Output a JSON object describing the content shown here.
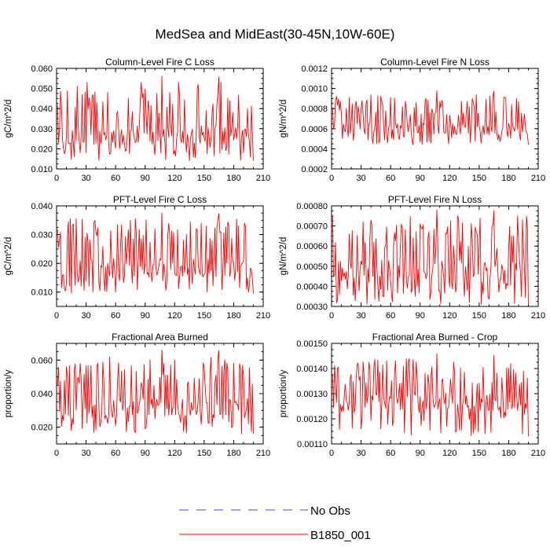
{
  "figure_title": "MedSea and MidEast(30-45N,10W-60E)",
  "colors": {
    "model": "#ff0000",
    "obs": "#0000ff",
    "axis": "#000000"
  },
  "legend": {
    "items": [
      {
        "label": "No Obs",
        "color": "#4a4ac8",
        "style": "dashed"
      },
      {
        "label": "B1850_001",
        "color": "#ff0000",
        "style": "solid"
      }
    ]
  },
  "chart_data": [
    {
      "type": "line",
      "title": "Column-Level Fire C Loss",
      "ylabel": "gC/m^2/d",
      "xlim": [
        0,
        210
      ],
      "ylim": [
        0.01,
        0.06
      ],
      "xticks": [
        0,
        30,
        60,
        90,
        120,
        150,
        180,
        210
      ],
      "xtick_labels": [
        "0",
        "30",
        "60",
        "90",
        "120",
        "150",
        "180",
        "210"
      ],
      "yticks": [
        0.01,
        0.02,
        0.03,
        0.04,
        0.05,
        0.06
      ],
      "ytick_labels": [
        "0.010",
        "0.020",
        "0.030",
        "0.040",
        "0.050",
        "0.060"
      ],
      "series": [
        {
          "name": "B1850_001",
          "seed": 11,
          "base": 0.027,
          "lo": 0.014,
          "hi": 0.056,
          "spike": 0.056
        }
      ]
    },
    {
      "type": "line",
      "title": "Column-Level Fire N Loss",
      "ylabel": "gN/m^2/d",
      "xlim": [
        0,
        210
      ],
      "ylim": [
        0.0002,
        0.0012
      ],
      "xticks": [
        0,
        30,
        60,
        90,
        120,
        150,
        180,
        210
      ],
      "xtick_labels": [
        "0",
        "30",
        "60",
        "90",
        "120",
        "150",
        "180",
        "210"
      ],
      "yticks": [
        0.0002,
        0.0004,
        0.0006,
        0.0008,
        0.001,
        0.0012
      ],
      "ytick_labels": [
        "0.0002",
        "0.0004",
        "0.0006",
        "0.0008",
        "0.0010",
        "0.0012"
      ],
      "series": [
        {
          "name": "B1850_001",
          "seed": 23,
          "base": 0.0006,
          "lo": 0.00044,
          "hi": 0.00098,
          "spike": 0.00098
        }
      ]
    },
    {
      "type": "line",
      "title": "PFT-Level Fire C Loss",
      "ylabel": "gC/m^2/d",
      "xlim": [
        0,
        210
      ],
      "ylim": [
        0.005,
        0.04
      ],
      "xticks": [
        0,
        30,
        60,
        90,
        120,
        150,
        180,
        210
      ],
      "xtick_labels": [
        "0",
        "30",
        "60",
        "90",
        "120",
        "150",
        "180",
        "210"
      ],
      "yticks": [
        0.01,
        0.02,
        0.03,
        0.04
      ],
      "ytick_labels": [
        "0.010",
        "0.020",
        "0.030",
        "0.040"
      ],
      "series": [
        {
          "name": "B1850_001",
          "seed": 37,
          "base": 0.0185,
          "lo": 0.0095,
          "hi": 0.0375,
          "spike": 0.0375
        }
      ]
    },
    {
      "type": "line",
      "title": "PFT-Level Fire N Loss",
      "ylabel": "gN/m^2/d",
      "xlim": [
        0,
        210
      ],
      "ylim": [
        0.0003,
        0.0008
      ],
      "xticks": [
        0,
        30,
        60,
        90,
        120,
        150,
        180,
        210
      ],
      "xtick_labels": [
        "0",
        "30",
        "60",
        "90",
        "120",
        "150",
        "180",
        "210"
      ],
      "yticks": [
        0.0003,
        0.0004,
        0.0005,
        0.0006,
        0.0007,
        0.0008
      ],
      "ytick_labels": [
        "0.00030",
        "0.00040",
        "0.00050",
        "0.00060",
        "0.00070",
        "0.00080"
      ],
      "series": [
        {
          "name": "B1850_001",
          "seed": 41,
          "base": 0.00048,
          "lo": 0.00031,
          "hi": 0.00078,
          "spike": 0.00078
        }
      ]
    },
    {
      "type": "line",
      "title": "Fractional Area Burned",
      "ylabel": "proportion/y",
      "xlim": [
        0,
        210
      ],
      "ylim": [
        0.01,
        0.07
      ],
      "xticks": [
        0,
        30,
        60,
        90,
        120,
        150,
        180,
        210
      ],
      "xtick_labels": [
        "0",
        "30",
        "60",
        "90",
        "120",
        "150",
        "180",
        "210"
      ],
      "yticks": [
        0.02,
        0.04,
        0.06
      ],
      "ytick_labels": [
        "0.020",
        "0.040",
        "0.060"
      ],
      "series": [
        {
          "name": "B1850_001",
          "seed": 53,
          "base": 0.032,
          "lo": 0.016,
          "hi": 0.066,
          "spike": 0.066
        }
      ]
    },
    {
      "type": "line",
      "title": "Fractional Area Burned - Crop",
      "ylabel": "proportion/y",
      "xlim": [
        0,
        210
      ],
      "ylim": [
        0.0011,
        0.0015
      ],
      "xticks": [
        0,
        30,
        60,
        90,
        120,
        150,
        180,
        210
      ],
      "xtick_labels": [
        "0",
        "30",
        "60",
        "90",
        "120",
        "150",
        "180",
        "210"
      ],
      "yticks": [
        0.0011,
        0.0012,
        0.0013,
        0.0014,
        0.0015
      ],
      "ytick_labels": [
        "0.00110",
        "0.00120",
        "0.00130",
        "0.00140",
        "0.00150"
      ],
      "series": [
        {
          "name": "B1850_001",
          "seed": 67,
          "base": 0.00127,
          "lo": 0.00113,
          "hi": 0.00146,
          "spike": 0.00146
        }
      ]
    }
  ]
}
